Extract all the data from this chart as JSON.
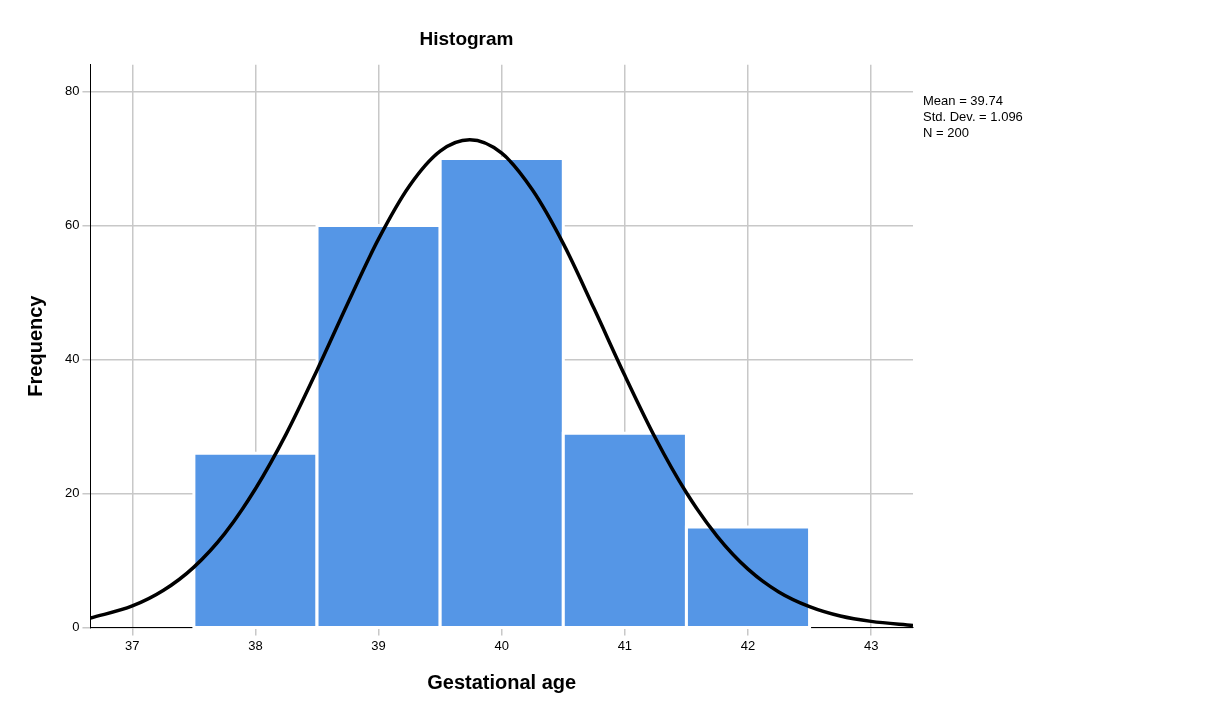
{
  "chart_data": {
    "type": "histogram",
    "title": "Histogram",
    "xlabel": "Gestational age",
    "ylabel": "Frequency",
    "bins": [
      37.5,
      38.5,
      39.5,
      40.5,
      41.5,
      42.5
    ],
    "values": [
      26,
      60,
      70,
      29,
      15
    ],
    "color": "#5596e6",
    "series": [
      {
        "type": "line",
        "color": "#000000",
        "x": [
          36.66,
          37.0,
          37.25,
          37.5,
          37.75,
          38.0,
          38.25,
          38.5,
          38.75,
          39.0,
          39.25,
          39.5,
          39.74,
          40.0,
          40.25,
          40.5,
          40.75,
          41.0,
          41.25,
          41.5,
          41.75,
          42.0,
          42.25,
          42.5,
          42.75,
          43.0,
          43.34
        ],
        "values": [
          1.4,
          3.2,
          5.5,
          9.0,
          14.0,
          20.7,
          28.9,
          38.4,
          48.4,
          58.0,
          65.9,
          71.1,
          72.8,
          70.8,
          65.3,
          57.3,
          47.6,
          37.6,
          28.2,
          20.1,
          13.6,
          8.7,
          5.3,
          3.1,
          1.7,
          0.9,
          0.3
        ]
      }
    ],
    "xlim": [
      36.66,
      43.34
    ],
    "xticks": [
      37,
      38,
      39,
      40,
      41,
      42,
      43
    ],
    "ylim": [
      0,
      84
    ],
    "yticks": [
      0,
      20,
      40,
      60,
      80
    ],
    "grid": true,
    "annotations": [
      "Mean = 39.74",
      "Std. Dev. = 1.096",
      "N = 200"
    ]
  }
}
